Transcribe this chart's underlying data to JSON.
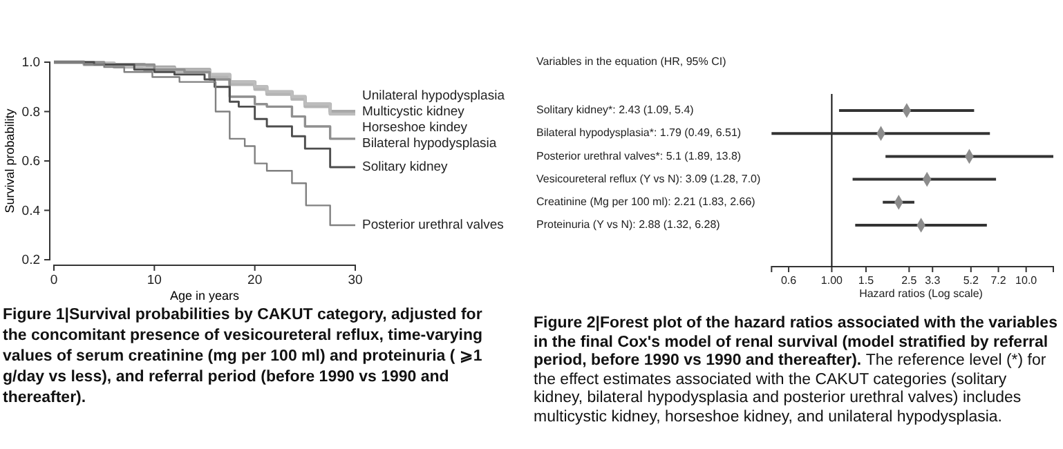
{
  "chart_data": [
    {
      "type": "step",
      "xlabel": "Age in years",
      "ylabel": "Survival probability",
      "xlim": [
        0,
        30
      ],
      "xticks": [
        0,
        10,
        20,
        30
      ],
      "ylim": [
        0.2,
        1.0
      ],
      "yticks": [
        0.2,
        0.4,
        0.6,
        0.8,
        {
          "value": 1.0,
          "label": "1.0"
        }
      ],
      "series": [
        {
          "name": "Unilateral hypodysplasia",
          "color": "#a8a8a8",
          "x": [
            0,
            3,
            6,
            9,
            12,
            15.5,
            17.5,
            20,
            21.2,
            23.7,
            25,
            27.5,
            30
          ],
          "values": [
            1,
            0.995,
            0.99,
            0.98,
            0.97,
            0.95,
            0.92,
            0.9,
            0.88,
            0.86,
            0.83,
            0.8,
            0.8
          ]
        },
        {
          "name": "Multicystic kidney",
          "color": "#b4b4b4",
          "x": [
            0,
            3,
            6,
            9,
            12,
            15.5,
            17.5,
            20,
            21.2,
            23.7,
            25,
            27.5,
            30
          ],
          "values": [
            1,
            0.99,
            0.98,
            0.97,
            0.96,
            0.94,
            0.91,
            0.89,
            0.87,
            0.85,
            0.82,
            0.79,
            0.79
          ]
        },
        {
          "name": "Horseshoe kindey",
          "color": "#bdbdbd",
          "x": [
            0,
            3,
            6,
            9,
            12,
            15.5,
            17.5,
            20,
            21.2,
            23.7,
            25,
            27.5,
            30
          ],
          "values": [
            1,
            0.995,
            0.985,
            0.975,
            0.965,
            0.95,
            0.92,
            0.9,
            0.88,
            0.86,
            0.83,
            0.79,
            0.79
          ]
        },
        {
          "name": "Bilateral hypodysplasia",
          "color": "#8f8f8f",
          "x": [
            0,
            5,
            10,
            13,
            15.5,
            17.5,
            20,
            21.2,
            23.7,
            25,
            27.5,
            30
          ],
          "values": [
            1,
            0.99,
            0.97,
            0.96,
            0.93,
            0.86,
            0.83,
            0.82,
            0.78,
            0.74,
            0.69,
            0.69
          ]
        },
        {
          "name": "Solitary kidney",
          "color": "#4d4d4d",
          "x": [
            0,
            4,
            8,
            10,
            12,
            15,
            16,
            17.5,
            18.4,
            20,
            21.2,
            23.7,
            25,
            27.5,
            30
          ],
          "values": [
            1,
            0.99,
            0.97,
            0.96,
            0.95,
            0.93,
            0.9,
            0.84,
            0.82,
            0.77,
            0.74,
            0.7,
            0.65,
            0.575,
            0.575
          ]
        },
        {
          "name": "Posterior urethral valves",
          "color": "#808080",
          "x": [
            0,
            3,
            5,
            7,
            9.8,
            12.5,
            16.1,
            17.5,
            19,
            20,
            21.2,
            23.7,
            25.1,
            27.5,
            30
          ],
          "values": [
            1,
            0.99,
            0.98,
            0.96,
            0.94,
            0.92,
            0.8,
            0.69,
            0.66,
            0.59,
            0.56,
            0.51,
            0.42,
            0.34,
            0.34
          ]
        }
      ],
      "annotations": [
        "Figure 1|Survival probabilities by CAKUT category, adjusted for the concomitant presence of vesicoureteral reflux, time-varying values of serum creatinine (mg per 100 ml) and proteinuria ( ⩾1 g/day vs less), and referral period (before 1990 vs 1990 and thereafter)."
      ]
    },
    {
      "type": "scatter",
      "orientation": "horizontal",
      "title": "Variables in the equation (HR, 95% CI)",
      "xlabel": "Hazard ratios (Log scale)",
      "log": "x",
      "marker": "diamond",
      "color": "#8c8c8c",
      "categories": [
        "Solitary kidney*: 2.43 (1.09, 5.4)",
        "Bilateral hypodysplasia*: 1.79 (0.49, 6.51)",
        "Posterior urethral valves*: 5.1 (1.89, 13.8)",
        "Vesicoureteral reflux (Y vs N): 3.09 (1.28, 7.0)",
        "Creatinine (Mg per 100 ml): 2.21 (1.83, 2.66)",
        "Proteinuria (Y vs N): 2.88 (1.32, 6.28)"
      ],
      "values": [
        2.43,
        1.79,
        5.1,
        3.09,
        2.21,
        2.88
      ],
      "errors": [
        [
          1.09,
          5.4
        ],
        [
          0.49,
          6.51
        ],
        [
          1.89,
          13.8
        ],
        [
          1.28,
          7.0
        ],
        [
          1.83,
          2.66
        ],
        [
          1.32,
          6.28
        ]
      ],
      "xlim": [
        0.49,
        13.8
      ],
      "xticks": [
        0.6,
        {
          "value": 1,
          "label": "1.00"
        },
        1.5,
        2.5,
        3.3,
        5.2,
        7.2,
        {
          "value": 10,
          "label": "10.0"
        }
      ],
      "ref_lines": [
        {
          "axis": "x",
          "value": 1
        }
      ],
      "annotations": [
        "Figure 2|Forest plot of the hazard ratios associated with the variables in the final Cox's model of renal survival (model stratified by referral period, before 1990 vs 1990 and thereafter).",
        "The reference level (*) for the effect estimates associated with the CAKUT categories (solitary kidney, bilateral hypodysplasia and posterior urethral valves) includes multicystic kidney, horseshoe kidney, and unilateral hypodysplasia."
      ]
    }
  ]
}
